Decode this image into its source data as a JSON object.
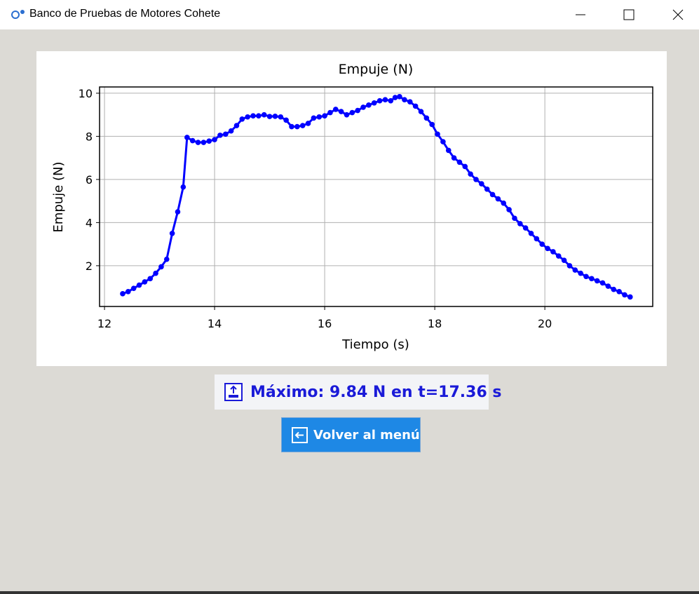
{
  "window": {
    "title": "Banco de Pruebas de Motores Cohete"
  },
  "chart_data": {
    "type": "line",
    "title": "Empuje (N)",
    "x_label": "Tiempo (s)",
    "y_label": "Empuje (N)",
    "x": [
      12.33,
      12.43,
      12.53,
      12.63,
      12.73,
      12.83,
      12.93,
      13.03,
      13.13,
      13.23,
      13.33,
      13.43,
      13.5,
      13.6,
      13.7,
      13.8,
      13.9,
      14.0,
      14.1,
      14.2,
      14.3,
      14.4,
      14.5,
      14.6,
      14.7,
      14.8,
      14.9,
      15.0,
      15.1,
      15.2,
      15.3,
      15.4,
      15.5,
      15.6,
      15.7,
      15.8,
      15.9,
      16.0,
      16.1,
      16.2,
      16.3,
      16.4,
      16.5,
      16.6,
      16.7,
      16.8,
      16.9,
      17.0,
      17.1,
      17.2,
      17.28,
      17.36,
      17.45,
      17.55,
      17.65,
      17.75,
      17.85,
      17.95,
      18.05,
      18.15,
      18.25,
      18.35,
      18.45,
      18.55,
      18.65,
      18.75,
      18.85,
      18.95,
      19.05,
      19.15,
      19.25,
      19.35,
      19.45,
      19.55,
      19.65,
      19.75,
      19.85,
      19.95,
      20.05,
      20.15,
      20.25,
      20.35,
      20.45,
      20.55,
      20.65,
      20.75,
      20.85,
      20.95,
      21.05,
      21.15,
      21.25,
      21.35,
      21.45,
      21.55
    ],
    "series": [
      {
        "name": "Empuje",
        "color": "#0000ff",
        "values": [
          0.7,
          0.8,
          0.95,
          1.1,
          1.25,
          1.4,
          1.65,
          1.95,
          2.3,
          3.5,
          4.5,
          5.65,
          7.95,
          7.8,
          7.72,
          7.72,
          7.78,
          7.85,
          8.05,
          8.1,
          8.25,
          8.5,
          8.8,
          8.9,
          8.95,
          8.95,
          9.0,
          8.92,
          8.93,
          8.9,
          8.75,
          8.45,
          8.45,
          8.5,
          8.6,
          8.85,
          8.9,
          8.95,
          9.1,
          9.25,
          9.15,
          9.0,
          9.1,
          9.2,
          9.35,
          9.45,
          9.55,
          9.65,
          9.7,
          9.65,
          9.8,
          9.84,
          9.7,
          9.6,
          9.4,
          9.15,
          8.85,
          8.55,
          8.1,
          7.75,
          7.35,
          7.0,
          6.8,
          6.6,
          6.25,
          6.0,
          5.8,
          5.55,
          5.3,
          5.1,
          4.9,
          4.6,
          4.2,
          3.95,
          3.75,
          3.5,
          3.25,
          3.0,
          2.8,
          2.65,
          2.45,
          2.25,
          2.0,
          1.8,
          1.65,
          1.5,
          1.4,
          1.3,
          1.2,
          1.05,
          0.9,
          0.8,
          0.65,
          0.55
        ]
      }
    ],
    "xlim": [
      11.91,
      21.96
    ],
    "xticks": [
      12,
      14,
      16,
      18,
      20
    ],
    "ylim": [
      0.11,
      10.29
    ],
    "yticks": [
      2,
      4,
      6,
      8,
      10
    ],
    "grid": true
  },
  "max_label": "Máximo: 9.84 N en t=17.36 s",
  "button": "Volver al menú"
}
